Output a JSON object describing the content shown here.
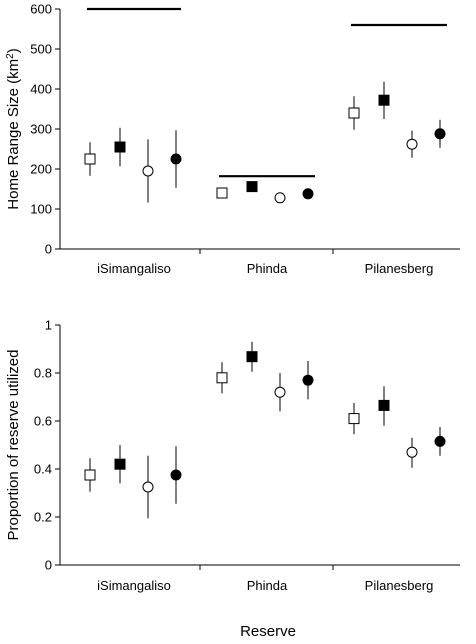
{
  "xlabel": "Reserve",
  "chart_data": [
    {
      "type": "scatter",
      "ylabel": "Home Range Size (km",
      "ylabel_sup": "2",
      "ylabel_close": ")",
      "ylim": [
        0,
        600
      ],
      "yticks": [
        0,
        100,
        200,
        300,
        400,
        500,
        600
      ],
      "grid": false,
      "categories": [
        "iSimangaliso",
        "Phinda",
        "Pilanesberg"
      ],
      "reference_lines": [
        600,
        182,
        560
      ],
      "series": [
        {
          "marker": "open-square",
          "values": [
            225,
            140,
            340
          ],
          "lower": [
            183,
            130,
            298
          ],
          "upper": [
            267,
            150,
            382
          ]
        },
        {
          "marker": "filled-square",
          "values": [
            255,
            156,
            372
          ],
          "lower": [
            207,
            148,
            325
          ],
          "upper": [
            303,
            164,
            418
          ]
        },
        {
          "marker": "open-circle",
          "values": [
            195,
            128,
            262
          ],
          "lower": [
            116,
            118,
            228
          ],
          "upper": [
            274,
            140,
            296
          ]
        },
        {
          "marker": "filled-circle",
          "values": [
            225,
            138,
            288
          ],
          "lower": [
            153,
            128,
            253
          ],
          "upper": [
            297,
            148,
            323
          ]
        }
      ]
    },
    {
      "type": "scatter",
      "ylabel": "Proportion of reserve utilized",
      "ylim": [
        0,
        1
      ],
      "yticks": [
        "0",
        "0.2",
        "0.4",
        "0.6",
        "0.8",
        "1"
      ],
      "grid": false,
      "categories": [
        "iSimangaliso",
        "Phinda",
        "Pilanesberg"
      ],
      "series": [
        {
          "marker": "open-square",
          "values": [
            0.375,
            0.78,
            0.61
          ],
          "lower": [
            0.305,
            0.715,
            0.545
          ],
          "upper": [
            0.445,
            0.845,
            0.675
          ]
        },
        {
          "marker": "filled-square",
          "values": [
            0.42,
            0.868,
            0.665
          ],
          "lower": [
            0.34,
            0.805,
            0.58
          ],
          "upper": [
            0.5,
            0.93,
            0.745
          ]
        },
        {
          "marker": "open-circle",
          "values": [
            0.325,
            0.72,
            0.47
          ],
          "lower": [
            0.195,
            0.64,
            0.405
          ],
          "upper": [
            0.455,
            0.8,
            0.53
          ]
        },
        {
          "marker": "filled-circle",
          "values": [
            0.375,
            0.77,
            0.515
          ],
          "lower": [
            0.255,
            0.69,
            0.455
          ],
          "upper": [
            0.495,
            0.85,
            0.575
          ]
        }
      ]
    }
  ]
}
